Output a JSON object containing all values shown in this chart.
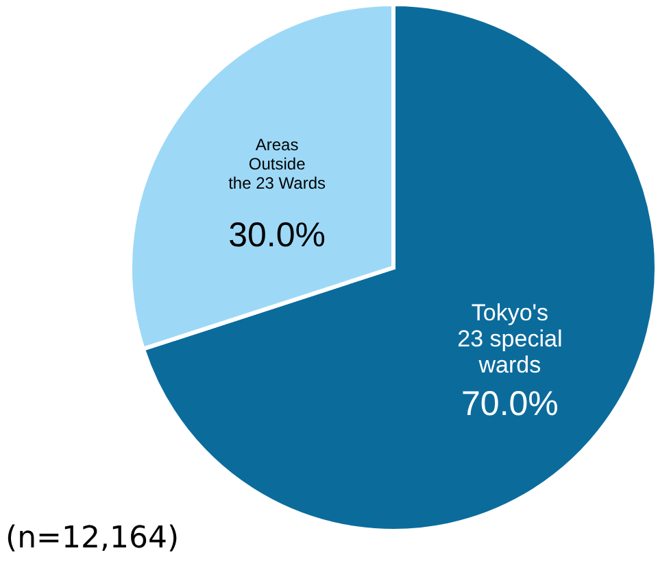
{
  "chart_data": {
    "type": "pie",
    "categories": [
      "Tokyo's\n23 special\nwards",
      "Areas\nOutside\nthe 23 Wards"
    ],
    "values": [
      70.0,
      30.0
    ],
    "colors": [
      "#0b6c9c",
      "#9dd9f7"
    ],
    "value_labels": [
      "70.0%",
      "30.0%"
    ],
    "annotations": [
      "(n=12,164)"
    ]
  }
}
